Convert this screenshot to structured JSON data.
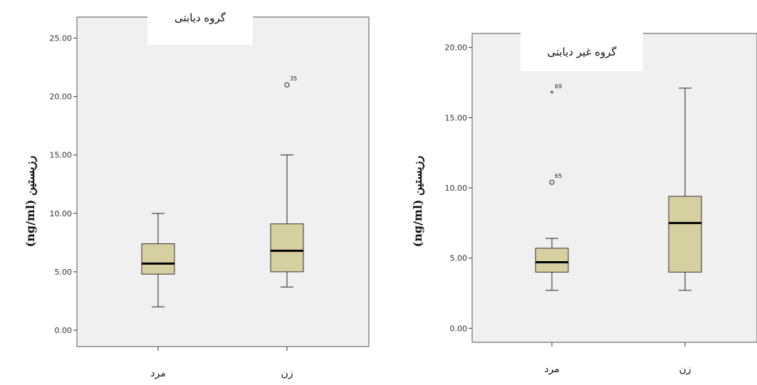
{
  "chart_data": [
    {
      "type": "box",
      "title": "گروه دیابتی",
      "ylabel": "رزیستین (ng/ml)",
      "ylim": [
        -1.4,
        26.8
      ],
      "yticks": [
        "0.00",
        "5.00",
        "10.00",
        "15.00",
        "20.00",
        "25.00"
      ],
      "categories": [
        "مرد",
        "زن"
      ],
      "boxes": [
        {
          "category": "مرد",
          "min": 2.0,
          "q1": 4.8,
          "median": 5.7,
          "q3": 7.4,
          "max": 10.0,
          "outliers": []
        },
        {
          "category": "زن",
          "min": 3.7,
          "q1": 5.0,
          "median": 6.8,
          "q3": 9.1,
          "max": 15.0,
          "outliers": [
            {
              "value": 21.0,
              "label": "35",
              "marker": "circle"
            }
          ]
        }
      ],
      "colors": {
        "box": "#d6cfa0",
        "plot_bg": "#f0f0f0"
      }
    },
    {
      "type": "box",
      "title": "گروه غیر دیابتی",
      "ylabel": "رزیستین (ng/ml)",
      "ylim": [
        -1.0,
        21.0
      ],
      "yticks": [
        "0.00",
        "5.00",
        "10.00",
        "15.00",
        "20.00"
      ],
      "categories": [
        "مرد",
        "زن"
      ],
      "boxes": [
        {
          "category": "مرد",
          "min": 2.7,
          "q1": 4.0,
          "median": 4.7,
          "q3": 5.7,
          "max": 6.4,
          "outliers": [
            {
              "value": 10.4,
              "label": "65",
              "marker": "circle"
            },
            {
              "value": 16.8,
              "label": "69",
              "marker": "star"
            }
          ]
        },
        {
          "category": "زن",
          "min": 2.7,
          "q1": 4.0,
          "median": 7.5,
          "q3": 9.4,
          "max": 17.1,
          "outliers": []
        }
      ],
      "colors": {
        "box": "#d6cfa0",
        "plot_bg": "#f0f0f0"
      }
    }
  ]
}
